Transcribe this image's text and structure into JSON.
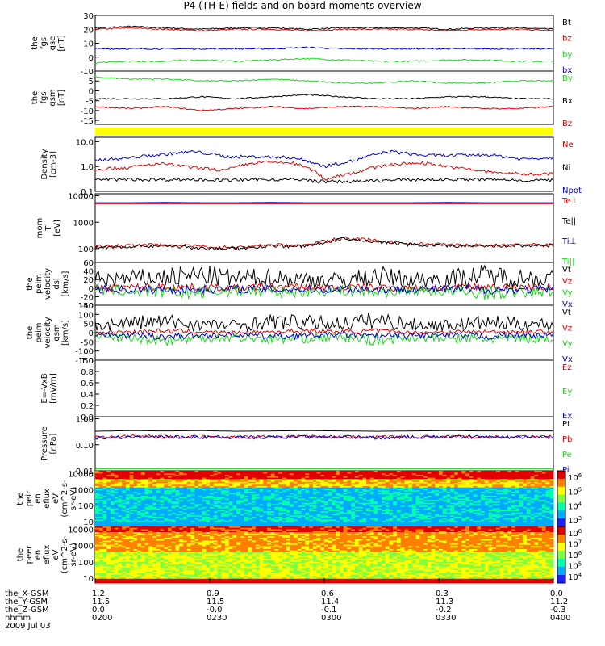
{
  "title": "P4 (TH-E) fields and on-board moments overview",
  "colors": {
    "black": "#000000",
    "red": "#e00000",
    "green": "#18d818",
    "blue": "#0000d0",
    "yellow": "#ffff00"
  },
  "chart_data": [
    {
      "id": "fgs_gse",
      "type": "line",
      "ylabel": [
        "the",
        "fgs",
        "gse",
        "[nT]"
      ],
      "ylim": [
        -10,
        30
      ],
      "ticks": [
        "30",
        "20",
        "10",
        "0",
        "-10"
      ],
      "series": [
        {
          "name": "Bt",
          "color": "#000000",
          "values": [
            21,
            22,
            21,
            20,
            21,
            21,
            20,
            21,
            21,
            21,
            20,
            21,
            21,
            20
          ]
        },
        {
          "name": "bz",
          "color": "#e00000",
          "values": [
            20,
            21,
            20,
            19,
            20,
            20,
            19,
            20,
            20,
            20,
            19,
            20,
            20,
            19
          ]
        },
        {
          "name": "by",
          "color": "#18d818",
          "values": [
            -4,
            -3,
            -3,
            -2,
            -3,
            -2,
            -1,
            -2,
            -3,
            -3,
            -2,
            -2,
            -3,
            -3
          ]
        },
        {
          "name": "bx",
          "color": "#0000d0",
          "values": [
            6,
            6,
            6,
            6,
            6,
            6,
            7,
            6,
            6,
            6,
            6,
            6,
            6,
            6
          ]
        }
      ],
      "legend": [
        [
          "Bt",
          "#000000"
        ],
        [
          "bz",
          "#e00000"
        ],
        [
          "by",
          "#18d818"
        ],
        [
          "bx",
          "#0000d0"
        ]
      ]
    },
    {
      "id": "fgs_gsm",
      "type": "line",
      "ylabel": [
        "the",
        "fgs",
        "gsm",
        "[nT]"
      ],
      "ylim": [
        -17,
        10
      ],
      "ticks": [
        "5",
        "0",
        "-5",
        "-10",
        "-15"
      ],
      "series": [
        {
          "name": "By",
          "color": "#18d818",
          "values": [
            7,
            6,
            6,
            5,
            5,
            6,
            5,
            4,
            4,
            5,
            4,
            4,
            5,
            5
          ]
        },
        {
          "name": "Bx",
          "color": "#000000",
          "values": [
            -4,
            -4,
            -4,
            -3,
            -4,
            -3,
            -2,
            -3,
            -4,
            -4,
            -3,
            -3,
            -4,
            -4
          ]
        },
        {
          "name": "Bz",
          "color": "#e00000",
          "values": [
            -8,
            -9,
            -8,
            -10,
            -9,
            -8,
            -9,
            -8,
            -8,
            -9,
            -8,
            -9,
            -9,
            -8
          ]
        }
      ],
      "legend": [
        [
          "By",
          "#18d818"
        ],
        [
          "Bx",
          "#000000"
        ],
        [
          "Bz",
          "#e00000"
        ]
      ]
    },
    {
      "id": "density",
      "type": "line",
      "log": true,
      "ylabel": [
        "Density",
        "[cm-3]"
      ],
      "ylim": [
        0.1,
        15
      ],
      "ticks": [
        "10.0",
        "1.0",
        "0.1"
      ],
      "series": [
        {
          "name": "Npot",
          "color": "#0000d0",
          "values": [
            1.8,
            2.2,
            3.0,
            4.0,
            2.5,
            2.5,
            2.3,
            1.0,
            1.8,
            4.0,
            2.8,
            2.8,
            3.0,
            2.0,
            2.3
          ]
        },
        {
          "name": "Ne",
          "color": "#e00000",
          "values": [
            0.8,
            0.9,
            1.3,
            0.9,
            0.7,
            1.5,
            1.4,
            0.3,
            0.6,
            1.2,
            1.4,
            0.9,
            0.6,
            0.5,
            0.5
          ]
        },
        {
          "name": "Ni",
          "color": "#000000",
          "values": [
            0.3,
            0.3,
            0.3,
            0.3,
            0.28,
            0.3,
            0.3,
            0.25,
            0.25,
            0.28,
            0.3,
            0.3,
            0.3,
            0.28,
            0.28
          ]
        }
      ],
      "legend": [
        [
          "Ne",
          "#e00000"
        ],
        [
          "Ni",
          "#000000"
        ],
        [
          "Npot",
          "#0000d0"
        ]
      ]
    },
    {
      "id": "mom_t",
      "type": "line",
      "log": true,
      "ylabel": [
        "mom",
        "T",
        "[eV]"
      ],
      "ylim": [
        30,
        12000
      ],
      "ticks": [
        "10000",
        "1000",
        "100"
      ],
      "series": [
        {
          "name": "Te⊥",
          "color": "#e00000",
          "values": [
            5000,
            5000,
            5000,
            5000,
            5000,
            5000,
            5000,
            5000,
            5000,
            5000,
            5000,
            5000,
            5000,
            5000
          ]
        },
        {
          "name": "Te||",
          "color": "#0000d0",
          "values": [
            5500,
            5500,
            5600,
            5500,
            5500,
            5600,
            5500,
            5500,
            5500,
            5500,
            5600,
            5500,
            5500,
            5500
          ]
        },
        {
          "name": "Ti⊥",
          "color": "#e00000",
          "values": [
            120,
            130,
            140,
            120,
            110,
            140,
            130,
            250,
            200,
            150,
            140,
            130,
            140,
            140
          ]
        },
        {
          "name": "Ti||",
          "color": "#000000",
          "values": [
            110,
            120,
            130,
            100,
            100,
            130,
            120,
            230,
            180,
            140,
            130,
            120,
            130,
            130
          ]
        }
      ],
      "legend": [
        [
          "Te⊥",
          "#e00000"
        ],
        [
          "Te||",
          "#000000"
        ],
        [
          "Ti⊥",
          "#0000d0"
        ],
        [
          "Ti||",
          "#18d818"
        ]
      ]
    },
    {
      "id": "peim_vel_dsl",
      "type": "line",
      "ylabel": [
        "the",
        "peim",
        "velocity",
        "dsl",
        "[km/s]"
      ],
      "ylim": [
        -40,
        60
      ],
      "ticks": [
        "60",
        "40",
        "20",
        "0",
        "-20",
        "-40"
      ],
      "series": [
        {
          "name": "Vt",
          "color": "#000000",
          "values": [
            20,
            22,
            25,
            30,
            22,
            25,
            20,
            18,
            28,
            20,
            22,
            30,
            25,
            22
          ]
        },
        {
          "name": "Vz",
          "color": "#e00000",
          "values": [
            0,
            2,
            3,
            2,
            0,
            3,
            2,
            1,
            2,
            0,
            1,
            3,
            2,
            2
          ]
        },
        {
          "name": "Vy",
          "color": "#18d818",
          "values": [
            -5,
            -8,
            -10,
            -12,
            -6,
            -10,
            -8,
            -6,
            -10,
            -5,
            -8,
            -12,
            -10,
            -8
          ]
        },
        {
          "name": "Vx",
          "color": "#0000d0",
          "values": [
            -2,
            -3,
            -4,
            -3,
            -2,
            -3,
            -3,
            -2,
            -3,
            -2,
            -3,
            -4,
            -3,
            -3
          ]
        }
      ],
      "legend": [
        [
          "Vt",
          "#000000"
        ],
        [
          "Vz",
          "#e00000"
        ],
        [
          "Vy",
          "#18d818"
        ],
        [
          "Vx",
          "#0000d0"
        ]
      ]
    },
    {
      "id": "peim_vel_gsm",
      "type": "line",
      "ylabel": [
        "the",
        "peim",
        "velocity",
        "gsm",
        "[km/s]"
      ],
      "ylim": [
        -150,
        150
      ],
      "ticks": [
        "150",
        "100",
        "50",
        "0",
        "-50",
        "-100",
        "-150"
      ],
      "series": [
        {
          "name": "Vt",
          "color": "#000000",
          "values": [
            40,
            55,
            60,
            45,
            40,
            60,
            55,
            50,
            70,
            45,
            40,
            55,
            50,
            45
          ]
        },
        {
          "name": "Vz",
          "color": "#e00000",
          "values": [
            0,
            5,
            10,
            5,
            0,
            5,
            10,
            5,
            10,
            0,
            5,
            5,
            5,
            5
          ]
        },
        {
          "name": "Vy",
          "color": "#18d818",
          "values": [
            -20,
            -30,
            -40,
            -30,
            -25,
            -35,
            -30,
            -25,
            -40,
            -25,
            -30,
            -35,
            -30,
            -30
          ]
        },
        {
          "name": "Vx",
          "color": "#0000d0",
          "values": [
            -10,
            -15,
            -20,
            -15,
            -10,
            -20,
            -15,
            -10,
            -20,
            -15,
            -15,
            -20,
            -15,
            -15
          ]
        }
      ],
      "legend": [
        [
          "Vt",
          "#000000"
        ],
        [
          "Vz",
          "#e00000"
        ],
        [
          "Vy",
          "#18d818"
        ],
        [
          "Vx",
          "#0000d0"
        ]
      ]
    },
    {
      "id": "efield",
      "type": "line",
      "ylabel": [
        "E=-VxB",
        "[mV/m]"
      ],
      "ylim": [
        0,
        1
      ],
      "ticks": [
        "1.0",
        "0.8",
        "0.6",
        "0.4",
        "0.2",
        "0.0"
      ],
      "series": [],
      "legend": [
        [
          "Ez",
          "#e00000"
        ],
        [
          "Ey",
          "#18d818"
        ],
        [
          "Ex",
          "#0000d0"
        ]
      ]
    },
    {
      "id": "pressure",
      "type": "line",
      "log": true,
      "ylabel": [
        "Pressure",
        "[nPa]"
      ],
      "ylim": [
        0.01,
        1.2
      ],
      "ticks": [
        "1.00",
        "0.10",
        "0.01"
      ],
      "series": [
        {
          "name": "Pt",
          "color": "#000000",
          "values": [
            0.33,
            0.35,
            0.34,
            0.35,
            0.33,
            0.34,
            0.35,
            0.34,
            0.33,
            0.34,
            0.35,
            0.34,
            0.34,
            0.34
          ]
        },
        {
          "name": "Pb",
          "color": "#e00000",
          "values": [
            0.2,
            0.22,
            0.2,
            0.21,
            0.2,
            0.2,
            0.21,
            0.2,
            0.2,
            0.2,
            0.21,
            0.2,
            0.2,
            0.2
          ]
        },
        {
          "name": "Pi",
          "color": "#0000d0",
          "values": [
            0.19,
            0.2,
            0.2,
            0.2,
            0.19,
            0.2,
            0.2,
            0.2,
            0.19,
            0.2,
            0.2,
            0.2,
            0.2,
            0.2
          ]
        },
        {
          "name": "Pe",
          "color": "#18d818",
          "values": [
            0.012,
            0.012,
            0.012,
            0.012,
            0.012,
            0.012,
            0.012,
            0.012,
            0.012,
            0.012,
            0.012,
            0.012,
            0.012,
            0.012
          ]
        }
      ],
      "legend": [
        [
          "Pt",
          "#000000"
        ],
        [
          "Pb",
          "#e00000"
        ],
        [
          "Pe",
          "#18d818"
        ],
        [
          "Pi",
          "#0000d0"
        ]
      ]
    },
    {
      "id": "peir_eflux",
      "type": "heatmap",
      "log": true,
      "ylabel": [
        "the",
        "peir",
        "en",
        "eflux",
        "eV",
        "(cm^2-s-",
        "sr-eV)"
      ],
      "ylim": [
        5,
        15000
      ],
      "ticks": [
        "10000",
        "1000",
        "100",
        "10"
      ],
      "zticks": [
        "10^6",
        "10^5",
        "10^4",
        "10^3"
      ]
    },
    {
      "id": "peer_eflux",
      "type": "heatmap",
      "log": true,
      "ylabel": [
        "the",
        "peer",
        "en",
        "eflux",
        "eV",
        "(cm^2-s-",
        "sr-eV)"
      ],
      "ylim": [
        5,
        15000
      ],
      "ticks": [
        "10000",
        "1000",
        "100",
        "10"
      ],
      "zticks": [
        "10^8",
        "10^7",
        "10^6",
        "10^5",
        "10^4"
      ]
    }
  ],
  "xaxis": {
    "rows": [
      {
        "label": "the_X-GSM",
        "values": [
          "1.2",
          "0.9",
          "0.6",
          "0.3",
          "0.0"
        ]
      },
      {
        "label": "the_Y-GSM",
        "values": [
          "11.5",
          "11.5",
          "11.4",
          "11.3",
          "11.2"
        ]
      },
      {
        "label": "the_Z-GSM",
        "values": [
          "0.0",
          "-0.0",
          "-0.1",
          "-0.2",
          "-0.3"
        ]
      },
      {
        "label": "hhmm",
        "values": [
          "0200",
          "0230",
          "0300",
          "0330",
          "0400"
        ]
      }
    ],
    "date": "2009 Jul 03"
  }
}
